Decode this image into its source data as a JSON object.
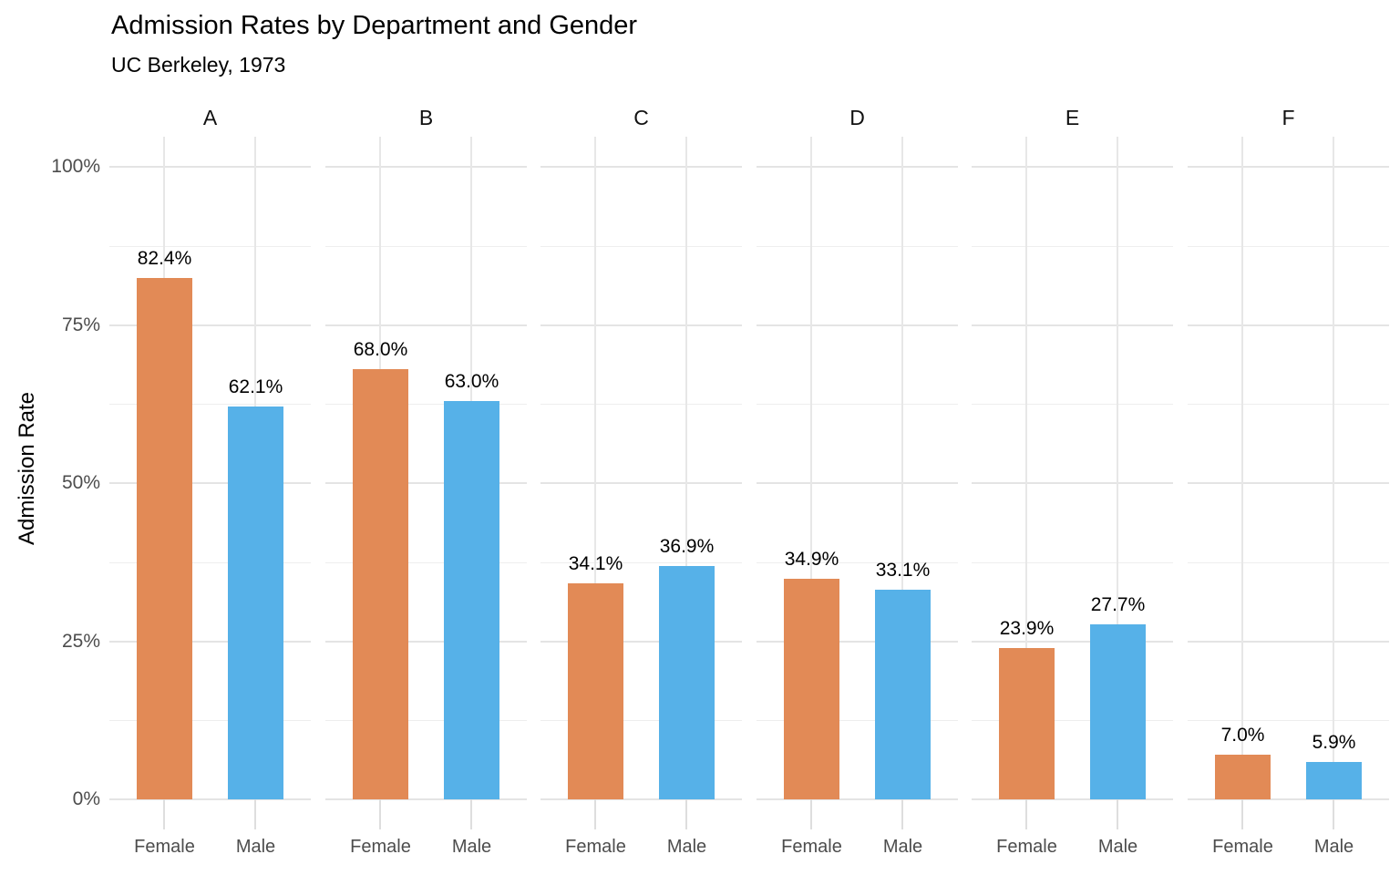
{
  "chart_data": {
    "type": "bar",
    "title": "Admission Rates by Department and Gender",
    "subtitle": "UC Berkeley, 1973",
    "ylabel": "Admission Rate",
    "xlabel": "",
    "ylim": [
      0,
      100
    ],
    "grid": true,
    "legend_position": "none",
    "y_ticks": [
      {
        "value": 0,
        "label": "0%"
      },
      {
        "value": 25,
        "label": "25%"
      },
      {
        "value": 50,
        "label": "50%"
      },
      {
        "value": 75,
        "label": "75%"
      },
      {
        "value": 100,
        "label": "100%"
      }
    ],
    "categories": [
      "Female",
      "Male"
    ],
    "colors": {
      "Female": "#E28A56",
      "Male": "#56B1E8"
    },
    "axis_text_color": "#4D4D4D",
    "facets": [
      {
        "label": "A",
        "values": [
          {
            "category": "Female",
            "value": 82.4,
            "label": "82.4%"
          },
          {
            "category": "Male",
            "value": 62.1,
            "label": "62.1%"
          }
        ]
      },
      {
        "label": "B",
        "values": [
          {
            "category": "Female",
            "value": 68.0,
            "label": "68.0%"
          },
          {
            "category": "Male",
            "value": 63.0,
            "label": "63.0%"
          }
        ]
      },
      {
        "label": "C",
        "values": [
          {
            "category": "Female",
            "value": 34.1,
            "label": "34.1%"
          },
          {
            "category": "Male",
            "value": 36.9,
            "label": "36.9%"
          }
        ]
      },
      {
        "label": "D",
        "values": [
          {
            "category": "Female",
            "value": 34.9,
            "label": "34.9%"
          },
          {
            "category": "Male",
            "value": 33.1,
            "label": "33.1%"
          }
        ]
      },
      {
        "label": "E",
        "values": [
          {
            "category": "Female",
            "value": 23.9,
            "label": "23.9%"
          },
          {
            "category": "Male",
            "value": 27.7,
            "label": "27.7%"
          }
        ]
      },
      {
        "label": "F",
        "values": [
          {
            "category": "Female",
            "value": 7.0,
            "label": "7.0%"
          },
          {
            "category": "Male",
            "value": 5.9,
            "label": "5.9%"
          }
        ]
      }
    ]
  }
}
